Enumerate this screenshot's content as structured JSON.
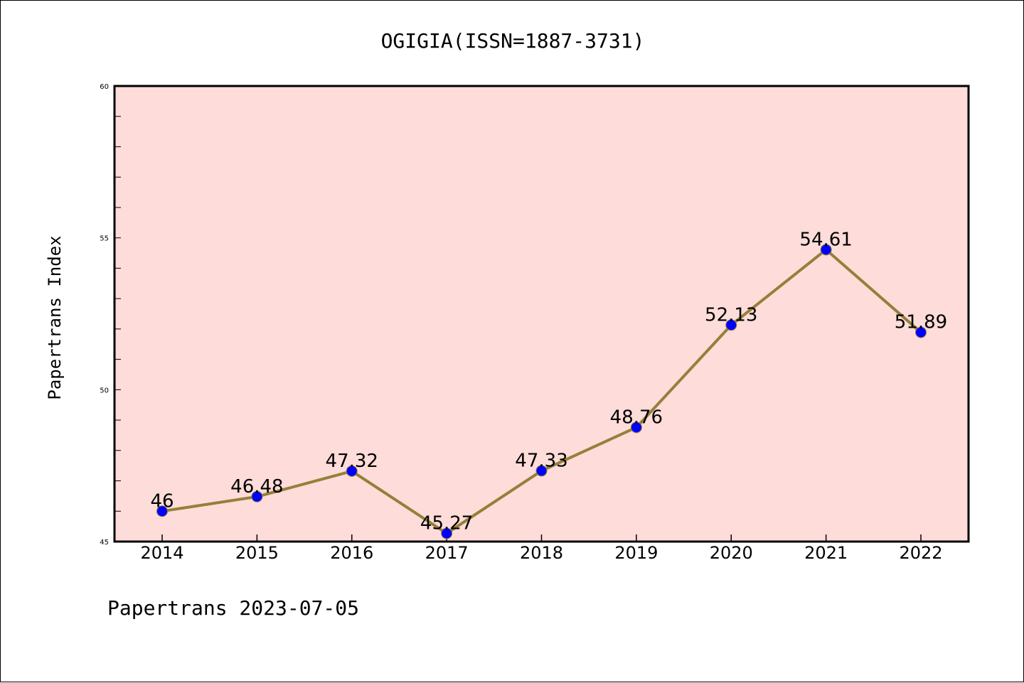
{
  "chart_data": {
    "type": "line",
    "title": "OGIGIA(ISSN=1887-3731)",
    "xlabel": "",
    "ylabel": "Papertrans Index",
    "categories": [
      "2014",
      "2015",
      "2016",
      "2017",
      "2018",
      "2019",
      "2020",
      "2021",
      "2022"
    ],
    "series": [
      {
        "values": [
          46,
          46.48,
          47.32,
          45.27,
          47.33,
          48.76,
          52.13,
          54.61,
          51.89
        ],
        "labels": [
          "46",
          "46.48",
          "47.32",
          "45.27",
          "47.33",
          "48.76",
          "52.13",
          "54.61",
          "51.89"
        ]
      }
    ],
    "ylim": [
      45,
      60
    ],
    "y_major_ticks": [
      "45",
      "50",
      "55",
      "60"
    ],
    "y_minor_step": 1,
    "grid": false,
    "legend": "none",
    "footer": "Papertrans 2023-07-05"
  },
  "colors": {
    "plot_background": "#fddcd9",
    "line": "#94803a",
    "marker": "#0000ff",
    "axis": "#000000"
  }
}
